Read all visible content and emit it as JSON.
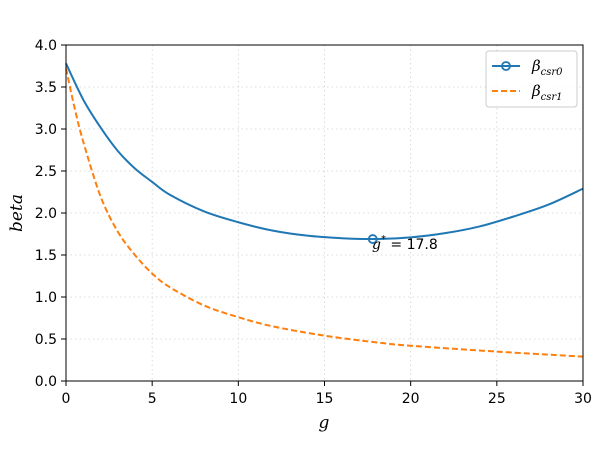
{
  "chart_data": {
    "type": "line",
    "xlabel": "g",
    "ylabel": "beta",
    "xlim": [
      0,
      30
    ],
    "ylim": [
      0,
      4.0
    ],
    "x_ticks": [
      "0",
      "5",
      "10",
      "15",
      "20",
      "25",
      "30"
    ],
    "y_ticks": [
      "0.0",
      "0.5",
      "1.0",
      "1.5",
      "2.0",
      "2.5",
      "3.0",
      "3.5",
      "4.0"
    ],
    "grid": true,
    "legend_position": "top-right",
    "series": [
      {
        "name_base": "β",
        "name_sub": "csr0",
        "color": "#1f77b4",
        "style": "solid",
        "x": [
          0,
          1,
          2,
          3,
          4,
          5,
          6,
          8,
          10,
          12,
          14,
          16,
          17.8,
          20,
          22,
          24,
          26,
          28,
          30
        ],
        "y": [
          3.78,
          3.35,
          3.02,
          2.74,
          2.53,
          2.37,
          2.22,
          2.02,
          1.89,
          1.79,
          1.73,
          1.7,
          1.69,
          1.71,
          1.76,
          1.84,
          1.96,
          2.1,
          2.29
        ]
      },
      {
        "name_base": "β",
        "name_sub": "csr1",
        "color": "#ff7f0e",
        "style": "dashed",
        "x": [
          0,
          0.5,
          1,
          2,
          3,
          4,
          5,
          6,
          8,
          10,
          12,
          15,
          18,
          20,
          25,
          30
        ],
        "y": [
          3.72,
          3.25,
          2.85,
          2.2,
          1.78,
          1.5,
          1.28,
          1.12,
          0.9,
          0.76,
          0.65,
          0.54,
          0.46,
          0.42,
          0.35,
          0.29
        ]
      }
    ],
    "marker": {
      "series": 0,
      "x": 17.8,
      "y": 1.69
    },
    "annotation": {
      "var": "g",
      "sup": "*",
      "text": " = 17.8",
      "x": 17.8,
      "y": 1.69
    }
  }
}
